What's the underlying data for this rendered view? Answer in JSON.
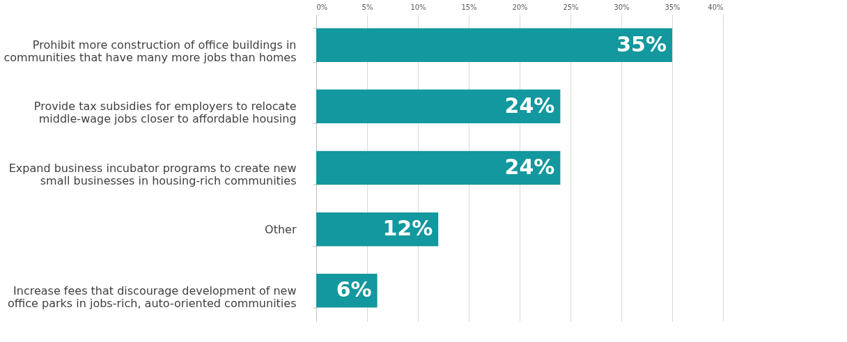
{
  "chart_data": {
    "type": "bar",
    "orientation": "horizontal",
    "categories": [
      "Prohibit more construction of office buildings in\ncommunities that have many more jobs than homes",
      "Provide tax subsidies for employers to relocate\nmiddle-wage jobs closer to affordable housing",
      "Expand business incubator programs to create new\nsmall businesses in housing-rich communities",
      "Other",
      "Increase fees that discourage development of new\noffice parks in jobs-rich, auto-oriented communities"
    ],
    "values": [
      35,
      24,
      24,
      12,
      6
    ],
    "value_labels": [
      "35%",
      "24%",
      "24%",
      "12%",
      "6%"
    ],
    "color": "#12989e",
    "xlim": [
      0,
      40
    ],
    "xticks": [
      {
        "value": 0,
        "label": "0%"
      },
      {
        "value": 5,
        "label": "5%"
      },
      {
        "value": 10,
        "label": "10%"
      },
      {
        "value": 15,
        "label": "15%"
      },
      {
        "value": 20,
        "label": "20%"
      },
      {
        "value": 25,
        "label": "25%"
      },
      {
        "value": 30,
        "label": "30%"
      },
      {
        "value": 35,
        "label": "35%"
      },
      {
        "value": 40,
        "label": "40%"
      }
    ],
    "grid": "x"
  }
}
